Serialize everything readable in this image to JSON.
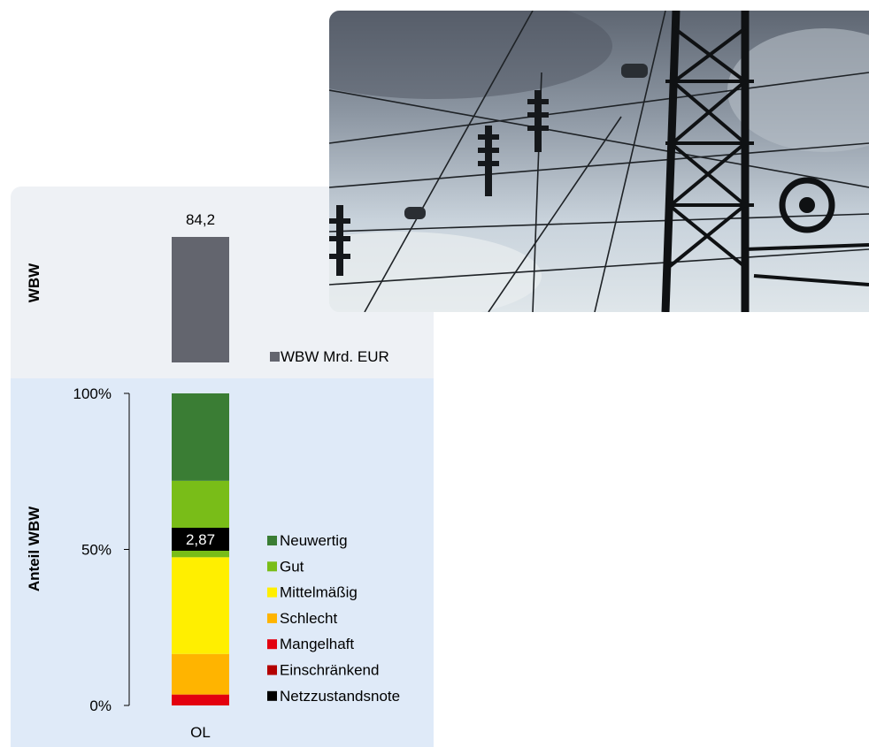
{
  "chart_data": [
    {
      "type": "bar",
      "categories": [
        "OL"
      ],
      "series": [
        {
          "name": "WBW Mrd. EUR",
          "values": [
            84.2
          ],
          "color": "#63656e"
        }
      ],
      "data_labels": [
        "84,2"
      ],
      "ylabel": "WBW",
      "legend": "right"
    },
    {
      "type": "bar",
      "stacked": true,
      "categories": [
        "OL"
      ],
      "ylabel": "Anteil WBW",
      "ylim": [
        0,
        100
      ],
      "yticks": [
        {
          "value": 0,
          "label": "0%"
        },
        {
          "value": 50,
          "label": "50%"
        },
        {
          "value": 100,
          "label": "100%"
        }
      ],
      "series": [
        {
          "name": "Neuwertig",
          "values": [
            28
          ],
          "color": "#3a7d34"
        },
        {
          "name": "Gut",
          "values": [
            24.5
          ],
          "color": "#79bd18"
        },
        {
          "name": "Mittelmäßig",
          "values": [
            31
          ],
          "color": "#ffef00"
        },
        {
          "name": "Schlecht",
          "values": [
            13
          ],
          "color": "#ffb400"
        },
        {
          "name": "Mangelhaft",
          "values": [
            3.5
          ],
          "color": "#e3000f"
        },
        {
          "name": "Einschränkend",
          "values": [
            0
          ],
          "color": "#b30000"
        }
      ],
      "overlay": {
        "name": "Netzzustandsnote",
        "value": "2,87",
        "color": "#000000"
      },
      "legend": "right"
    }
  ],
  "photo": {
    "subject": "power-line-tower-photo"
  }
}
